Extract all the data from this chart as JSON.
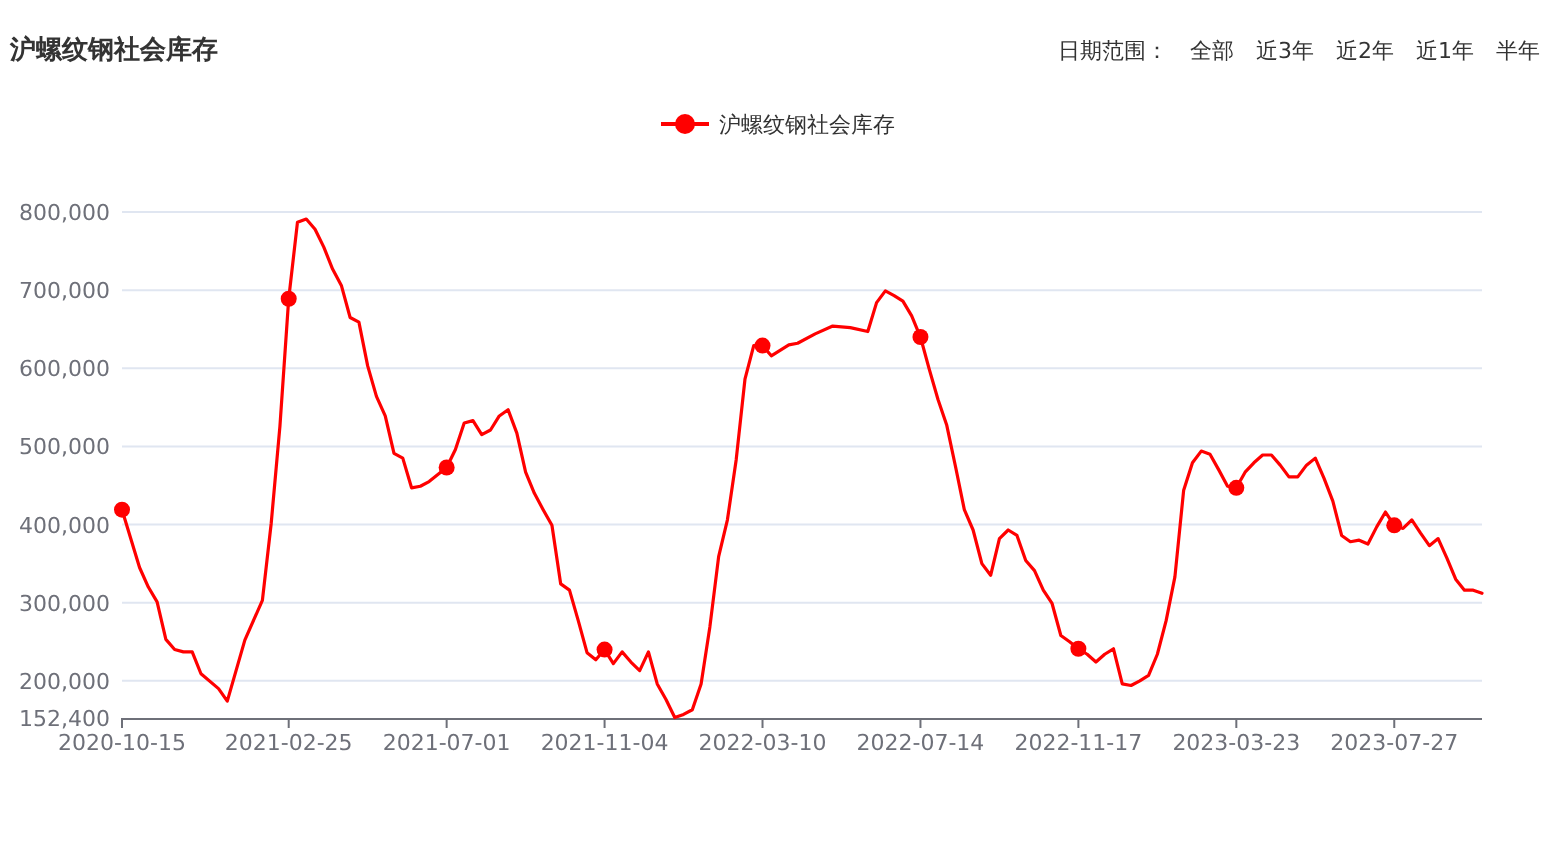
{
  "chart_data": {
    "type": "line",
    "title": "沪螺纹钢社会库存",
    "annotations": [
      "日期范围：",
      "全部",
      "近3年",
      "近2年",
      "近1年",
      "半年"
    ],
    "legend": "top",
    "grid": "y",
    "line_style": "solid",
    "xlim": [
      "2020-10-15",
      "2023-10-05"
    ],
    "xticks": [
      {
        "value": "2020-10-15",
        "label": "2020-10-15"
      },
      {
        "value": "2021-02-25",
        "label": "2021-02-25"
      },
      {
        "value": "2021-07-01",
        "label": "2021-07-01"
      },
      {
        "value": "2021-11-04",
        "label": "2021-11-04"
      },
      {
        "value": "2022-03-10",
        "label": "2022-03-10"
      },
      {
        "value": "2022-07-14",
        "label": "2022-07-14"
      },
      {
        "value": "2022-11-17",
        "label": "2022-11-17"
      },
      {
        "value": "2023-03-23",
        "label": "2023-03-23"
      },
      {
        "value": "2023-07-27",
        "label": "2023-07-27"
      }
    ],
    "ylim": [
      152400,
      800000
    ],
    "yticks": [
      {
        "value": 152400,
        "label": "152,400"
      },
      {
        "value": 200000,
        "label": "200,000"
      },
      {
        "value": 300000,
        "label": "300,000"
      },
      {
        "value": 400000,
        "label": "400,000"
      },
      {
        "value": 500000,
        "label": "500,000"
      },
      {
        "value": 600000,
        "label": "600,000"
      },
      {
        "value": 700000,
        "label": "700,000"
      },
      {
        "value": 800000,
        "label": "800,000"
      }
    ],
    "series": [
      {
        "name": "沪螺纹钢社会库存",
        "color": "#ff0000",
        "x": [
          "2020-10-15",
          "2020-10-29",
          "2020-11-05",
          "2020-11-12",
          "2020-11-19",
          "2020-11-26",
          "2020-12-03",
          "2020-12-10",
          "2020-12-17",
          "2020-12-31",
          "2021-01-07",
          "2021-01-21",
          "2021-02-04",
          "2021-02-11",
          "2021-02-18",
          "2021-02-25",
          "2021-03-04",
          "2021-03-11",
          "2021-03-18",
          "2021-03-25",
          "2021-04-01",
          "2021-04-08",
          "2021-04-15",
          "2021-04-22",
          "2021-04-29",
          "2021-05-06",
          "2021-05-13",
          "2021-05-20",
          "2021-05-27",
          "2021-06-03",
          "2021-06-10",
          "2021-06-17",
          "2021-07-01",
          "2021-07-08",
          "2021-07-15",
          "2021-07-22",
          "2021-07-29",
          "2021-08-05",
          "2021-08-12",
          "2021-08-19",
          "2021-08-26",
          "2021-09-02",
          "2021-09-09",
          "2021-09-16",
          "2021-09-23",
          "2021-09-30",
          "2021-10-07",
          "2021-10-14",
          "2021-10-21",
          "2021-10-28",
          "2021-11-04",
          "2021-11-11",
          "2021-11-18",
          "2021-11-25",
          "2021-12-02",
          "2021-12-09",
          "2021-12-16",
          "2021-12-23",
          "2021-12-30",
          "2022-01-06",
          "2022-01-13",
          "2022-01-20",
          "2022-01-27",
          "2022-02-03",
          "2022-02-10",
          "2022-02-17",
          "2022-02-24",
          "2022-03-03",
          "2022-03-10",
          "2022-03-17",
          "2022-03-31",
          "2022-04-07",
          "2022-04-21",
          "2022-05-05",
          "2022-05-19",
          "2022-06-02",
          "2022-06-09",
          "2022-06-16",
          "2022-06-23",
          "2022-06-30",
          "2022-07-07",
          "2022-07-14",
          "2022-07-21",
          "2022-07-28",
          "2022-08-04",
          "2022-08-11",
          "2022-08-18",
          "2022-08-25",
          "2022-09-01",
          "2022-09-08",
          "2022-09-15",
          "2022-09-22",
          "2022-09-29",
          "2022-10-06",
          "2022-10-13",
          "2022-10-20",
          "2022-10-27",
          "2022-11-03",
          "2022-11-10",
          "2022-11-17",
          "2022-11-24",
          "2022-12-01",
          "2022-12-08",
          "2022-12-15",
          "2022-12-22",
          "2022-12-29",
          "2023-01-05",
          "2023-01-12",
          "2023-01-19",
          "2023-01-26",
          "2023-02-02",
          "2023-02-09",
          "2023-02-16",
          "2023-02-23",
          "2023-03-02",
          "2023-03-09",
          "2023-03-16",
          "2023-03-23",
          "2023-03-30",
          "2023-04-06",
          "2023-04-13",
          "2023-04-20",
          "2023-04-27",
          "2023-05-04",
          "2023-05-11",
          "2023-05-18",
          "2023-05-25",
          "2023-06-01",
          "2023-06-08",
          "2023-06-15",
          "2023-06-22",
          "2023-06-29",
          "2023-07-06",
          "2023-07-13",
          "2023-07-20",
          "2023-07-27",
          "2023-08-03",
          "2023-08-10",
          "2023-08-17",
          "2023-08-24",
          "2023-08-31",
          "2023-09-07",
          "2023-09-14",
          "2023-09-21",
          "2023-09-28",
          "2023-10-05"
        ],
        "values": [
          419000,
          345000,
          320000,
          301000,
          253000,
          240000,
          237000,
          237000,
          209000,
          190000,
          174000,
          252000,
          303000,
          401000,
          526000,
          689000,
          787000,
          791000,
          778000,
          755000,
          727000,
          706000,
          665000,
          659000,
          603000,
          564000,
          539000,
          491000,
          485000,
          447000,
          449000,
          455000,
          473000,
          496000,
          530000,
          533000,
          515000,
          521000,
          539000,
          547000,
          517000,
          467000,
          440000,
          419000,
          399000,
          324000,
          316000,
          277000,
          236000,
          227000,
          240000,
          222000,
          237000,
          224000,
          213000,
          237000,
          196000,
          176000,
          153000,
          157000,
          163000,
          196000,
          269000,
          359000,
          406000,
          483000,
          586000,
          629000,
          629000,
          616000,
          630000,
          632000,
          644000,
          654000,
          652000,
          647000,
          684000,
          699000,
          693000,
          686000,
          667000,
          640000,
          599000,
          560000,
          527000,
          474000,
          419000,
          393000,
          350000,
          335000,
          382000,
          393000,
          386000,
          354000,
          341000,
          316000,
          299000,
          258000,
          250000,
          241000,
          234000,
          224000,
          234000,
          241000,
          196000,
          194000,
          200000,
          207000,
          234000,
          277000,
          333000,
          444000,
          479000,
          494000,
          490000,
          470000,
          449000,
          447000,
          467000,
          479000,
          489000,
          489000,
          476000,
          461000,
          461000,
          476000,
          485000,
          459000,
          430000,
          386000,
          378000,
          380000,
          375000,
          397000,
          416000,
          399000,
          395000,
          406000,
          389000,
          373000,
          382000,
          357000,
          330000,
          316000,
          316000,
          312000
        ]
      },
      {
        "type": "scatter",
        "marker": "circle",
        "color": "#ff0000",
        "x": [
          "2020-10-15",
          "2021-02-25",
          "2021-07-01",
          "2021-11-04",
          "2022-03-10",
          "2022-07-14",
          "2022-11-17",
          "2023-03-23",
          "2023-07-27"
        ],
        "values": [
          419000,
          689000,
          473000,
          240000,
          629000,
          640000,
          241000,
          447000,
          399000
        ]
      }
    ]
  }
}
